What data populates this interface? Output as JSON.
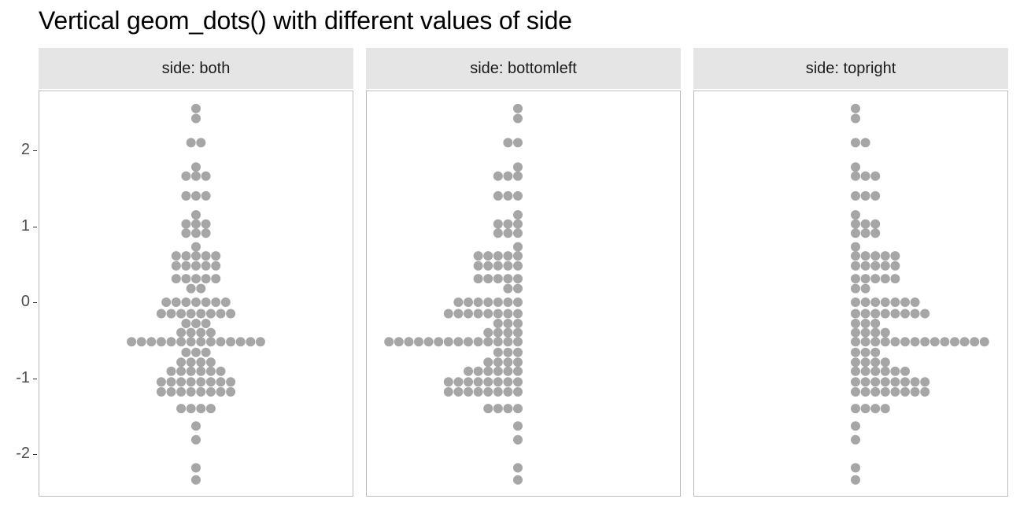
{
  "chart_data": {
    "type": "dotplot",
    "title": "Vertical geom_dots() with different values of side",
    "ylabel": "",
    "xlabel": "",
    "y_ticks": [
      "-2",
      "-1",
      "0",
      "1",
      "2"
    ],
    "ylim": [
      -2.5,
      2.8
    ],
    "dot_color": "#a6a6a6",
    "panels": [
      {
        "label": "side: both",
        "side": "both"
      },
      {
        "label": "side: bottomleft",
        "side": "bottomleft"
      },
      {
        "label": "side: topright",
        "side": "topright"
      }
    ],
    "bins": [
      {
        "y": 2.55,
        "count": 1
      },
      {
        "y": 2.42,
        "count": 1
      },
      {
        "y": 2.1,
        "count": 2
      },
      {
        "y": 1.78,
        "count": 1
      },
      {
        "y": 1.66,
        "count": 3
      },
      {
        "y": 1.4,
        "count": 3
      },
      {
        "y": 1.15,
        "count": 1
      },
      {
        "y": 1.03,
        "count": 3
      },
      {
        "y": 0.91,
        "count": 3
      },
      {
        "y": 0.73,
        "count": 1
      },
      {
        "y": 0.61,
        "count": 5
      },
      {
        "y": 0.48,
        "count": 5
      },
      {
        "y": 0.31,
        "count": 5
      },
      {
        "y": 0.18,
        "count": 2
      },
      {
        "y": 0.0,
        "count": 7
      },
      {
        "y": -0.15,
        "count": 8
      },
      {
        "y": -0.28,
        "count": 3
      },
      {
        "y": -0.4,
        "count": 4
      },
      {
        "y": -0.52,
        "count": 14
      },
      {
        "y": -0.66,
        "count": 3
      },
      {
        "y": -0.79,
        "count": 4
      },
      {
        "y": -0.91,
        "count": 6
      },
      {
        "y": -1.05,
        "count": 8
      },
      {
        "y": -1.18,
        "count": 8
      },
      {
        "y": -1.4,
        "count": 4
      },
      {
        "y": -1.63,
        "count": 1
      },
      {
        "y": -1.81,
        "count": 1
      },
      {
        "y": -2.18,
        "count": 1
      },
      {
        "y": -2.34,
        "count": 1
      }
    ]
  }
}
